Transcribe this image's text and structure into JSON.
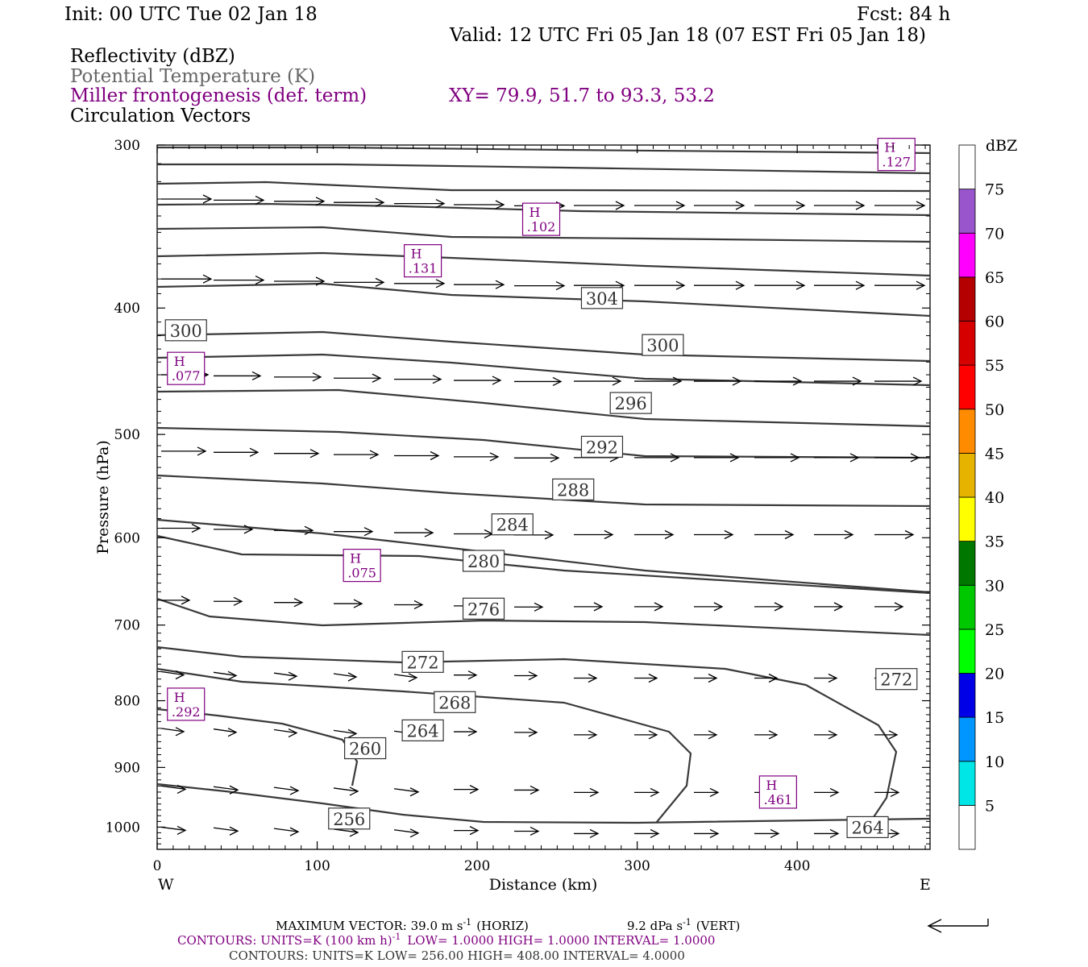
{
  "header": {
    "init": "Init: 00 UTC Tue 02 Jan 18",
    "fcst": "Fcst:   84 h",
    "valid": "Valid: 12 UTC Fri 05 Jan 18 (07 EST Fri 05 Jan 18)",
    "xy": "XY=  79.9, 51.7 to  93.3, 53.2"
  },
  "fields": {
    "reflectivity": "Reflectivity (dBZ)",
    "theta": "Potential Temperature (K)",
    "miller": "Miller frontogenesis (def. term)",
    "vectors": "Circulation Vectors"
  },
  "colorbar": {
    "title": "dBZ",
    "labels": [
      "5",
      "10",
      "15",
      "20",
      "25",
      "30",
      "35",
      "40",
      "45",
      "50",
      "55",
      "60",
      "65",
      "70",
      "75"
    ],
    "colors": [
      "#ffffff",
      "#00e6e6",
      "#0096ff",
      "#0000e6",
      "#00ff00",
      "#00c800",
      "#007800",
      "#ffff00",
      "#e6b400",
      "#ff8c00",
      "#ff0000",
      "#d70000",
      "#b40000",
      "#ff00ff",
      "#9955cc",
      "#ffffff"
    ]
  },
  "footer": {
    "maxvec": "MAXIMUM VECTOR:  39.0 m s",
    "maxvec_exp": "-1",
    "horiz": "(HORIZ)",
    "vert": "9.2 dPa s",
    "vert_exp": "-1",
    "vert_tail": "(VERT)",
    "contours1_a": "CONTOURS:  UNITS=K (100 km h)",
    "contours1_exp": "-1",
    "contours1_b": "LOW=   1.0000       HIGH=  1.0000       INTERVAL=    1.0000",
    "contours2": "CONTOURS:  UNITS=K  LOW=   256.00        HIGH=  408.00        INTERVAL=    4.0000"
  },
  "chart_data": {
    "type": "cross-section",
    "title": "",
    "xlabel": "Distance (km)",
    "ylabel": "Pressure (hPa)",
    "xlim": [
      0,
      483
    ],
    "ylim": [
      1040,
      300
    ],
    "y_scale": "log",
    "x_ticks": [
      "0",
      "100",
      "200",
      "300",
      "400"
    ],
    "y_ticks": [
      "300",
      "400",
      "500",
      "600",
      "700",
      "800",
      "900",
      "1000"
    ],
    "x_end_labels": {
      "left": "W",
      "right": "E"
    },
    "theta_labels": [
      {
        "value": "304",
        "x": 278,
        "p": 393
      },
      {
        "value": "300",
        "x": 18,
        "p": 416
      },
      {
        "value": "300",
        "x": 316,
        "p": 427
      },
      {
        "value": "296",
        "x": 296,
        "p": 473
      },
      {
        "value": "292",
        "x": 278,
        "p": 511
      },
      {
        "value": "288",
        "x": 260,
        "p": 551
      },
      {
        "value": "284",
        "x": 222,
        "p": 586
      },
      {
        "value": "280",
        "x": 204,
        "p": 625
      },
      {
        "value": "276",
        "x": 204,
        "p": 680
      },
      {
        "value": "272",
        "x": 166,
        "p": 747
      },
      {
        "value": "272",
        "x": 462,
        "p": 770
      },
      {
        "value": "268",
        "x": 186,
        "p": 802
      },
      {
        "value": "264",
        "x": 166,
        "p": 843
      },
      {
        "value": "264",
        "x": 444,
        "p": 1000
      },
      {
        "value": "260",
        "x": 130,
        "p": 870
      },
      {
        "value": "256",
        "x": 120,
        "p": 985
      }
    ],
    "frontogenesis_highs": [
      {
        "label": "H",
        "value": ".127",
        "x": 462,
        "p": 305
      },
      {
        "label": "H",
        "value": ".102",
        "x": 240,
        "p": 342
      },
      {
        "label": "H",
        "value": ".131",
        "x": 166,
        "p": 368
      },
      {
        "label": "H",
        "value": ".077",
        "x": 18,
        "p": 445
      },
      {
        "label": "H",
        "value": ".075",
        "x": 128,
        "p": 630
      },
      {
        "label": "H",
        "value": ".292",
        "x": 18,
        "p": 805
      },
      {
        "label": "H",
        "value": ".461",
        "x": 388,
        "p": 940
      }
    ],
    "max_vector": {
      "horiz_m_s": 39.0,
      "vert_dPa_s": 9.2
    },
    "theta_contours": {
      "units": "K",
      "low": 256.0,
      "high": 408.0,
      "interval": 4.0
    },
    "frontogenesis_contours": {
      "units": "K (100 km h)^-1",
      "low": 1.0,
      "high": 1.0,
      "interval": 1.0
    }
  }
}
